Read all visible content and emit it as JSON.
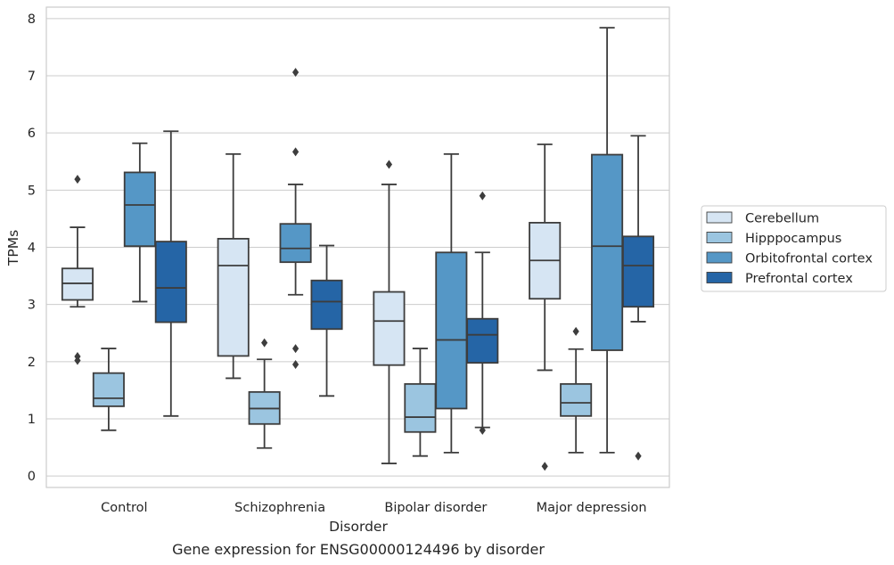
{
  "chart_data": {
    "type": "box",
    "caption": "Gene expression for ENSG00000124496 by disorder",
    "xlabel": "Disorder",
    "ylabel": "TPMs",
    "ylim": [
      -0.2,
      8.2
    ],
    "yticks": [
      0,
      1,
      2,
      3,
      4,
      5,
      6,
      7,
      8
    ],
    "grid": "horizontal",
    "legend_position": "right",
    "categories": [
      "Control",
      "Schizophrenia",
      "Bipolar disorder",
      "Major depression"
    ],
    "series": [
      {
        "name": "Cerebellum",
        "color": "#d6e5f3",
        "boxes": [
          {
            "whislo": 2.96,
            "q1": 3.08,
            "med": 3.37,
            "q3": 3.63,
            "whishi": 4.35,
            "fliers": [
              5.19,
              2.09,
              2.02
            ]
          },
          {
            "whislo": 1.71,
            "q1": 2.1,
            "med": 3.68,
            "q3": 4.15,
            "whishi": 5.63,
            "fliers": []
          },
          {
            "whislo": 0.22,
            "q1": 1.94,
            "med": 2.71,
            "q3": 3.22,
            "whishi": 5.1,
            "fliers": [
              5.45
            ]
          },
          {
            "whislo": 1.85,
            "q1": 3.1,
            "med": 3.77,
            "q3": 4.43,
            "whishi": 5.8,
            "fliers": [
              0.17
            ]
          }
        ]
      },
      {
        "name": "Hipppocampus",
        "color": "#9bc5e0",
        "boxes": [
          {
            "whislo": 0.8,
            "q1": 1.22,
            "med": 1.36,
            "q3": 1.8,
            "whishi": 2.23,
            "fliers": []
          },
          {
            "whislo": 0.49,
            "q1": 0.91,
            "med": 1.18,
            "q3": 1.47,
            "whishi": 2.04,
            "fliers": [
              2.33
            ]
          },
          {
            "whislo": 0.35,
            "q1": 0.77,
            "med": 1.03,
            "q3": 1.61,
            "whishi": 2.23,
            "fliers": []
          },
          {
            "whislo": 0.41,
            "q1": 1.05,
            "med": 1.28,
            "q3": 1.61,
            "whishi": 2.22,
            "fliers": [
              2.53
            ]
          }
        ]
      },
      {
        "name": "Orbitofrontal cortex",
        "color": "#5597c6",
        "boxes": [
          {
            "whislo": 3.05,
            "q1": 4.02,
            "med": 4.74,
            "q3": 5.31,
            "whishi": 5.82,
            "fliers": []
          },
          {
            "whislo": 3.17,
            "q1": 3.74,
            "med": 3.98,
            "q3": 4.41,
            "whishi": 5.1,
            "fliers": [
              7.06,
              5.67,
              2.23,
              1.95
            ]
          },
          {
            "whislo": 0.41,
            "q1": 1.18,
            "med": 2.38,
            "q3": 3.91,
            "whishi": 5.63,
            "fliers": []
          },
          {
            "whislo": 0.41,
            "q1": 2.2,
            "med": 4.02,
            "q3": 5.62,
            "whishi": 7.84,
            "fliers": []
          }
        ]
      },
      {
        "name": "Prefrontal cortex",
        "color": "#2565a6",
        "boxes": [
          {
            "whislo": 1.05,
            "q1": 2.69,
            "med": 3.29,
            "q3": 4.1,
            "whishi": 6.03,
            "fliers": []
          },
          {
            "whislo": 1.4,
            "q1": 2.57,
            "med": 3.05,
            "q3": 3.42,
            "whishi": 4.03,
            "fliers": []
          },
          {
            "whislo": 0.85,
            "q1": 1.98,
            "med": 2.47,
            "q3": 2.75,
            "whishi": 3.91,
            "fliers": [
              4.9,
              0.8
            ]
          },
          {
            "whislo": 2.7,
            "q1": 2.96,
            "med": 3.68,
            "q3": 4.19,
            "whishi": 5.95,
            "fliers": [
              0.35
            ]
          }
        ]
      }
    ]
  }
}
